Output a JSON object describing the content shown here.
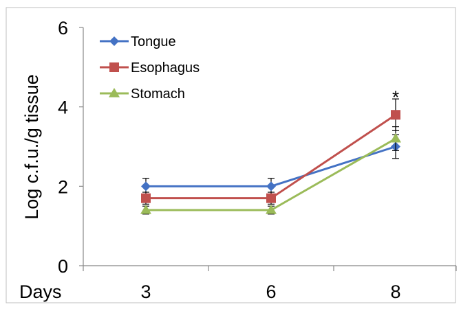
{
  "chart_data": {
    "type": "line",
    "x": [
      3,
      6,
      8
    ],
    "tick_labels_x": [
      "3",
      "6",
      "8"
    ],
    "tick_labels_y": [
      "0",
      "2",
      "4",
      "6"
    ],
    "ylim": [
      0,
      6
    ],
    "ylabel": "Log c.f.u./g tissue",
    "xlabel": "Days",
    "grid": false,
    "legend_placement": "top-left",
    "series": [
      {
        "name": "Tongue",
        "values": [
          2.0,
          2.0,
          3.0
        ],
        "errors": [
          0.2,
          0.2,
          0.3
        ],
        "color": "#4472C4",
        "marker": "diamond"
      },
      {
        "name": "Esophagus",
        "values": [
          1.7,
          1.7,
          3.8
        ],
        "errors": [
          0.15,
          0.15,
          0.4
        ],
        "color": "#C0504D",
        "marker": "square"
      },
      {
        "name": "Stomach",
        "values": [
          1.4,
          1.4,
          3.2
        ],
        "errors": [
          0.1,
          0.1,
          0.3
        ],
        "color": "#9BBB59",
        "marker": "triangle"
      }
    ],
    "annotations": [
      {
        "text": "*",
        "x": 8,
        "y": 4.3
      }
    ]
  }
}
